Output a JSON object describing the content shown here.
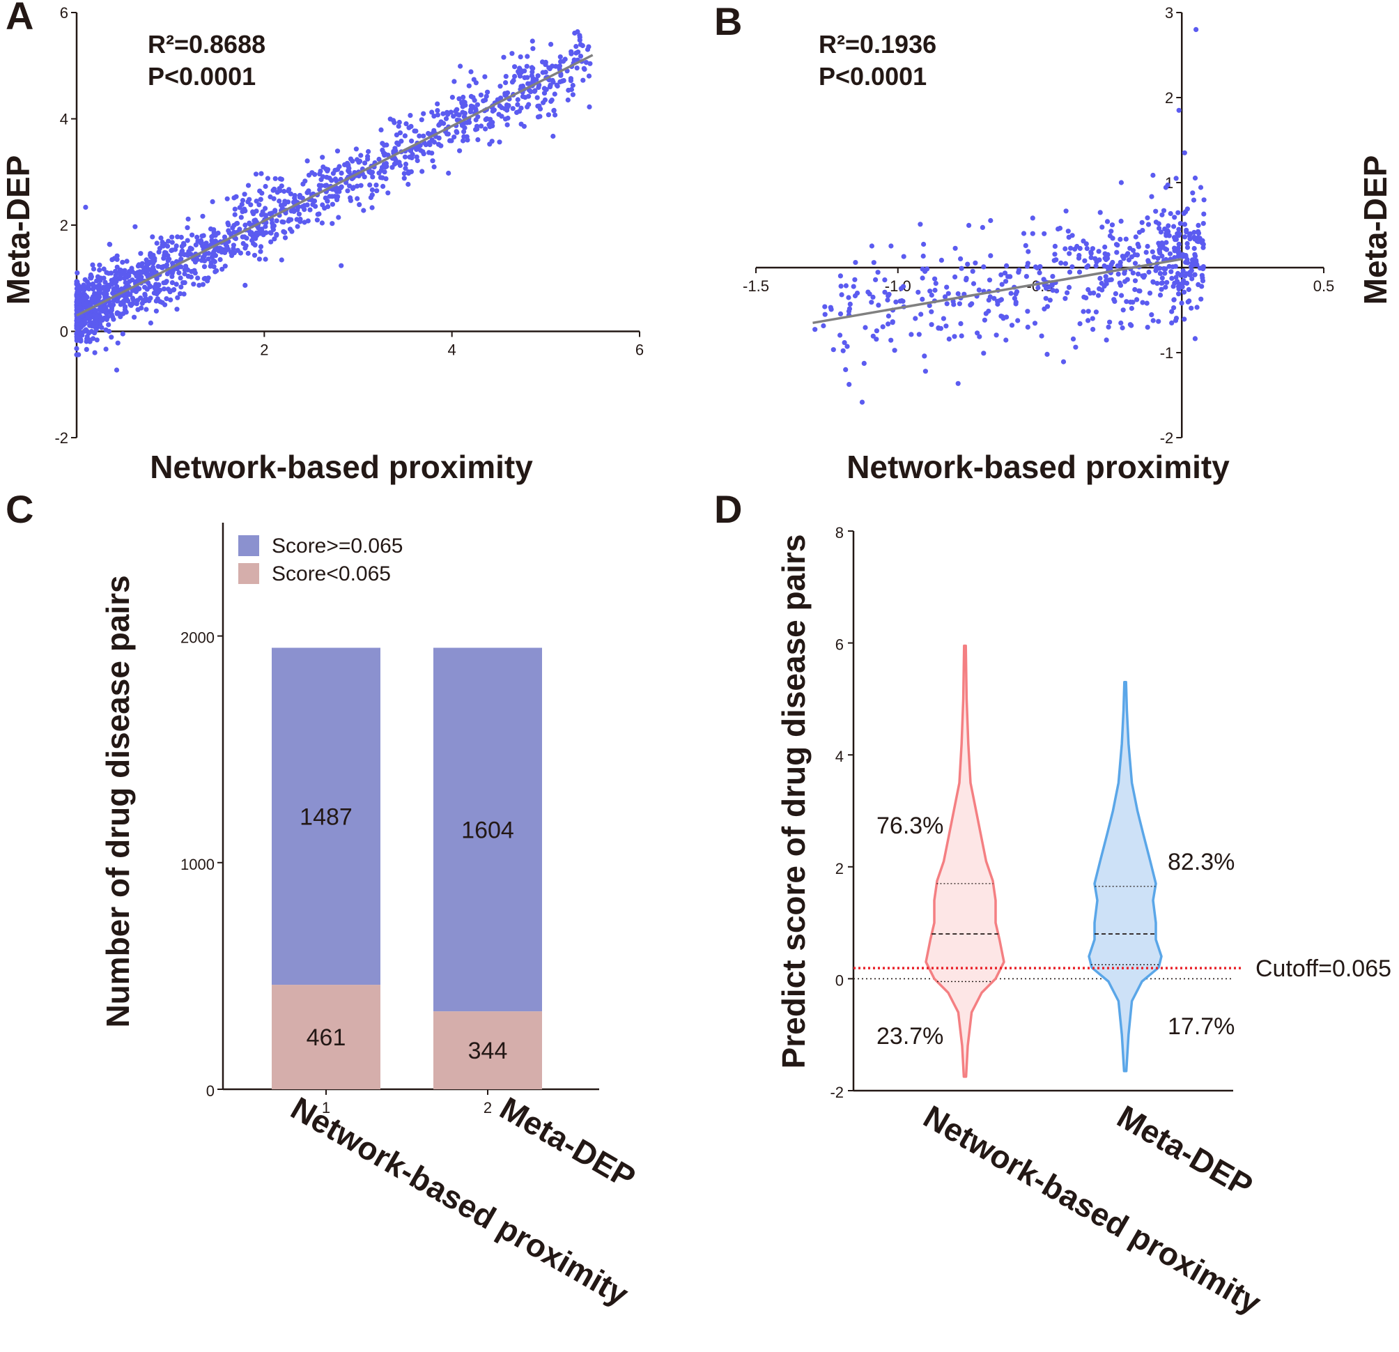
{
  "chart_data": [
    {
      "panel": "A",
      "type": "scatter",
      "xlabel": "Network-based proximity",
      "ylabel": "Meta-DEP",
      "xlim": [
        0,
        6
      ],
      "ylim": [
        -2,
        6
      ],
      "xticks": [
        "2",
        "4",
        "6"
      ],
      "yticks": [
        "-2",
        "0",
        "2",
        "4",
        "6"
      ],
      "annotations": [
        "R²=0.8688",
        "P<0.0001"
      ],
      "regression": {
        "x": [
          0,
          5.5
        ],
        "y": [
          0.3,
          5.2
        ]
      },
      "points_color": "#5b5bf0",
      "line_color": "#808080",
      "n_points": 1948,
      "point_cloud": {
        "x_range": [
          0,
          5.5
        ],
        "trend": "y ≈ 0.3 + 0.89x",
        "spread": 0.35
      }
    },
    {
      "panel": "B",
      "type": "scatter",
      "xlabel": "Network-based proximity",
      "ylabel": "Meta-DEP",
      "xlim": [
        -1.5,
        0.5
      ],
      "ylim": [
        -2,
        3
      ],
      "xticks": [
        "-1.5",
        "-1.0",
        "-0.5",
        "0.5"
      ],
      "yticks": [
        "-2",
        "-1",
        "1",
        "2",
        "3"
      ],
      "annotations": [
        "R²=0.1936",
        "P<0.0001"
      ],
      "regression": {
        "x": [
          -1.3,
          0.0
        ],
        "y": [
          -0.65,
          0.1
        ]
      },
      "points_color": "#5b5bf0",
      "line_color": "#808080",
      "n_points": 700,
      "point_cloud": {
        "x_range": [
          -1.3,
          0.08
        ],
        "trend": "denser near x = 0",
        "spread": 0.35
      }
    },
    {
      "panel": "C",
      "type": "bar",
      "stacked": true,
      "categories": [
        "1",
        "2"
      ],
      "category_names": [
        "Network-based proximity",
        "Meta-DEP"
      ],
      "series": [
        {
          "name": "Score<0.065",
          "values": [
            461,
            344
          ],
          "color": "#d5aeab"
        },
        {
          "name": "Score>=0.065",
          "values": [
            1487,
            1604
          ],
          "color": "#8b91cf"
        }
      ],
      "ylabel": "Number of drug disease pairs",
      "ylim": [
        0,
        2500
      ],
      "yticks": [
        "0",
        "1000",
        "2000"
      ],
      "legend_position": "top-left",
      "legend_order": [
        "Score>=0.065",
        "Score<0.065"
      ]
    },
    {
      "panel": "D",
      "type": "violin",
      "categories": [
        "Network-based proximity",
        "Meta-DEP"
      ],
      "ylabel": "Predict score of drug disease pairs",
      "ylim": [
        -2,
        8
      ],
      "yticks": [
        "-2",
        "0",
        "2",
        "4",
        "6",
        "8"
      ],
      "cutoff": {
        "value": 0.065,
        "label": "Cutoff=0.065",
        "color": "#e8222a"
      },
      "violins": [
        {
          "name": "Network-based proximity",
          "color": "#f47f82",
          "fill": "#fde6e6",
          "min": -1.75,
          "max": 5.95,
          "q1": -0.05,
          "median": 0.8,
          "q3": 1.7,
          "above_pct": "76.3%",
          "below_pct": "23.7%",
          "profile": [
            [
              -1.75,
              0.02
            ],
            [
              -1.2,
              0.05
            ],
            [
              -0.6,
              0.12
            ],
            [
              -0.25,
              0.3
            ],
            [
              0.0,
              0.55
            ],
            [
              0.3,
              0.7
            ],
            [
              0.7,
              0.62
            ],
            [
              1.0,
              0.55
            ],
            [
              1.4,
              0.55
            ],
            [
              1.75,
              0.5
            ],
            [
              2.1,
              0.38
            ],
            [
              2.5,
              0.3
            ],
            [
              3.0,
              0.2
            ],
            [
              3.5,
              0.1
            ],
            [
              4.2,
              0.06
            ],
            [
              5.0,
              0.03
            ],
            [
              5.95,
              0.015
            ]
          ]
        },
        {
          "name": "Meta-DEP",
          "color": "#5aa6e8",
          "fill": "#cde1f7",
          "min": -1.65,
          "max": 5.3,
          "q1": 0.25,
          "median": 0.8,
          "q3": 1.65,
          "above_pct": "82.3%",
          "below_pct": "17.7%",
          "profile": [
            [
              -1.65,
              0.02
            ],
            [
              -1.0,
              0.06
            ],
            [
              -0.4,
              0.12
            ],
            [
              -0.05,
              0.3
            ],
            [
              0.2,
              0.6
            ],
            [
              0.4,
              0.65
            ],
            [
              0.7,
              0.55
            ],
            [
              1.0,
              0.55
            ],
            [
              1.4,
              0.5
            ],
            [
              1.7,
              0.55
            ],
            [
              2.1,
              0.45
            ],
            [
              2.6,
              0.32
            ],
            [
              3.0,
              0.22
            ],
            [
              3.5,
              0.12
            ],
            [
              4.2,
              0.06
            ],
            [
              4.8,
              0.03
            ],
            [
              5.3,
              0.015
            ]
          ]
        }
      ]
    }
  ]
}
